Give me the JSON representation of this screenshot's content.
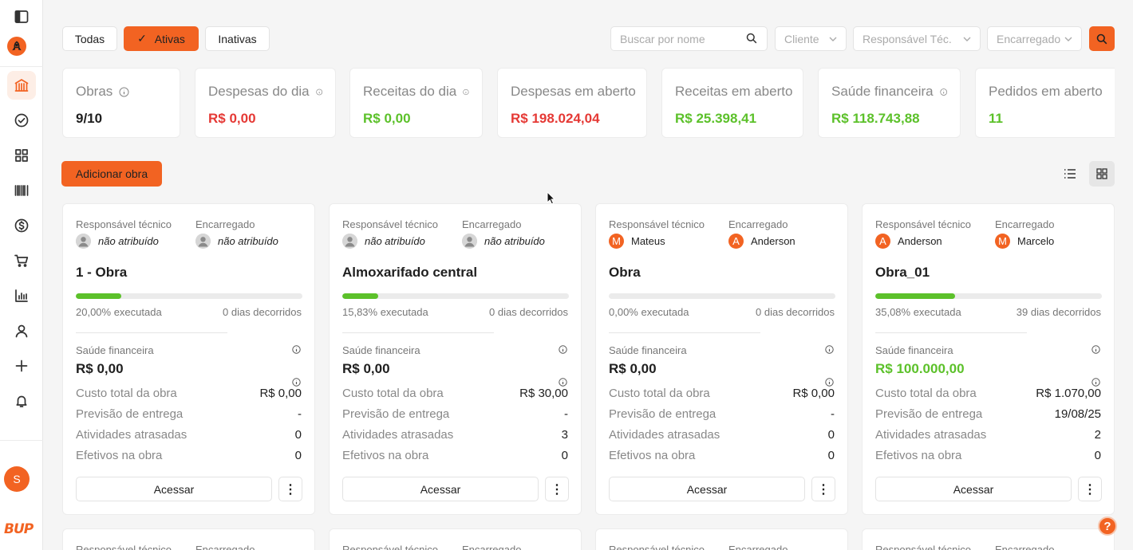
{
  "theme": {
    "accent": "#f26322",
    "positive": "#5cc12a",
    "negative": "#e53935"
  },
  "sidebar": {
    "items": [
      {
        "name": "sidebar-toggle",
        "icon": "sidebar-toggle-icon"
      },
      {
        "name": "rocket",
        "icon": "rocket-icon"
      },
      {
        "name": "obras",
        "icon": "building-icon",
        "active": true
      },
      {
        "name": "tasks",
        "icon": "check-circle-icon"
      },
      {
        "name": "dashboard",
        "icon": "grid-icon"
      },
      {
        "name": "inventory",
        "icon": "barcode-icon"
      },
      {
        "name": "finance",
        "icon": "dollar-icon"
      },
      {
        "name": "purchases",
        "icon": "cart-icon"
      },
      {
        "name": "reports",
        "icon": "chart-icon"
      },
      {
        "name": "users",
        "icon": "user-icon"
      },
      {
        "name": "add",
        "icon": "plus-icon"
      },
      {
        "name": "notifications",
        "icon": "bell-icon"
      }
    ],
    "avatar_initial": "S",
    "brand": "BUP"
  },
  "filters": {
    "tabs": [
      "Todas",
      "Ativas",
      "Inativas"
    ],
    "active_tab": "Ativas",
    "search_placeholder": "Buscar por nome",
    "client_placeholder": "Cliente",
    "tech_placeholder": "Responsável Téc.",
    "foreman_placeholder": "Encarregado"
  },
  "stats": [
    {
      "label": "Obras",
      "value": "9/10",
      "info": true,
      "tone": "neutral"
    },
    {
      "label": "Despesas do dia",
      "value": "R$ 0,00",
      "info": true,
      "tone": "negative"
    },
    {
      "label": "Receitas do dia",
      "value": "R$ 0,00",
      "info": true,
      "tone": "positive"
    },
    {
      "label": "Despesas em aberto",
      "value": "R$ 198.024,04",
      "info": false,
      "tone": "negative"
    },
    {
      "label": "Receitas em aberto",
      "value": "R$ 25.398,41",
      "info": false,
      "tone": "positive"
    },
    {
      "label": "Saúde financeira",
      "value": "R$ 118.743,88",
      "info": true,
      "tone": "positive"
    },
    {
      "label": "Pedidos em aberto",
      "value": "11",
      "info": true,
      "tone": "positive"
    }
  ],
  "actions": {
    "add_label": "Adicionar obra"
  },
  "labels": {
    "tech_head": "Responsável técnico",
    "foreman_head": "Encarregado",
    "health": "Saúde financeira",
    "total_cost": "Custo total da obra",
    "delivery": "Previsão de entrega",
    "late": "Atividades atrasadas",
    "staff": "Efetivos na obra",
    "access": "Acessar",
    "more": "⋮"
  },
  "projects": [
    {
      "tech": {
        "name": "não atribuído",
        "initial": "",
        "assigned": false
      },
      "foreman": {
        "name": "não atribuído",
        "initial": "",
        "assigned": false
      },
      "title": "1 - Obra",
      "progress_pct": 20,
      "executed": "20,00% executada",
      "days": "0 dias decorridos",
      "health": "R$ 0,00",
      "health_tone": "neutral",
      "total_cost": "R$ 0,00",
      "delivery": "-",
      "late": "0",
      "late_alert": false,
      "staff": "0"
    },
    {
      "tech": {
        "name": "não atribuído",
        "initial": "",
        "assigned": false
      },
      "foreman": {
        "name": "não atribuído",
        "initial": "",
        "assigned": false
      },
      "title": "Almoxarifado central",
      "progress_pct": 15.83,
      "executed": "15,83% executada",
      "days": "0 dias decorridos",
      "health": "R$ 0,00",
      "health_tone": "neutral",
      "total_cost": "R$ 30,00",
      "delivery": "-",
      "late": "3",
      "late_alert": true,
      "staff": "0"
    },
    {
      "tech": {
        "name": "Mateus",
        "initial": "M",
        "assigned": true
      },
      "foreman": {
        "name": "Anderson",
        "initial": "A",
        "assigned": true
      },
      "title": "Obra",
      "progress_pct": 0,
      "executed": "0,00% executada",
      "days": "0 dias decorridos",
      "health": "R$ 0,00",
      "health_tone": "neutral",
      "total_cost": "R$ 0,00",
      "delivery": "-",
      "late": "0",
      "late_alert": false,
      "staff": "0"
    },
    {
      "tech": {
        "name": "Anderson",
        "initial": "A",
        "assigned": true
      },
      "foreman": {
        "name": "Marcelo",
        "initial": "M",
        "assigned": true
      },
      "title": "Obra_01",
      "progress_pct": 35.08,
      "executed": "35,08% executada",
      "days": "39 dias decorridos",
      "health": "R$ 100.000,00",
      "health_tone": "positive",
      "total_cost": "R$ 1.070,00",
      "delivery": "19/08/25",
      "late": "2",
      "late_alert": true,
      "staff": "0"
    }
  ],
  "help_label": "?"
}
